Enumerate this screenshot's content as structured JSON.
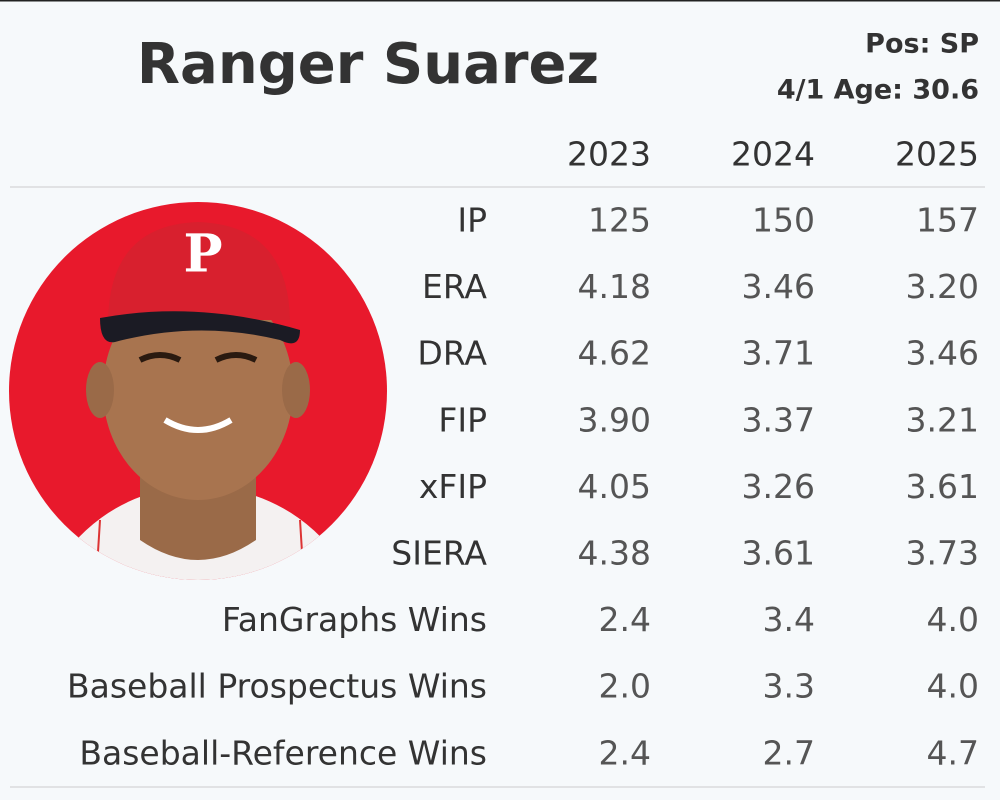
{
  "header": {
    "name": "Ranger Suarez",
    "position": "Pos: SP",
    "age": "4/1 Age: 30.6"
  },
  "table": {
    "columns": [
      "2023",
      "2024",
      "2025"
    ],
    "rows": [
      {
        "label": "IP",
        "values": [
          "125",
          "150",
          "157"
        ]
      },
      {
        "label": "ERA",
        "values": [
          "4.18",
          "3.46",
          "3.20"
        ]
      },
      {
        "label": "DRA",
        "values": [
          "4.62",
          "3.71",
          "3.46"
        ]
      },
      {
        "label": "FIP",
        "values": [
          "3.90",
          "3.37",
          "3.21"
        ]
      },
      {
        "label": "xFIP",
        "values": [
          "4.05",
          "3.26",
          "3.61"
        ]
      },
      {
        "label": "SIERA",
        "values": [
          "4.38",
          "3.61",
          "3.73"
        ]
      },
      {
        "label": "FanGraphs Wins",
        "values": [
          "2.4",
          "3.4",
          "4.0"
        ]
      },
      {
        "label": "Baseball Prospectus Wins",
        "values": [
          "2.0",
          "3.3",
          "4.0"
        ]
      },
      {
        "label": "Baseball-Reference Wins",
        "values": [
          "2.4",
          "2.7",
          "4.7"
        ]
      }
    ]
  }
}
